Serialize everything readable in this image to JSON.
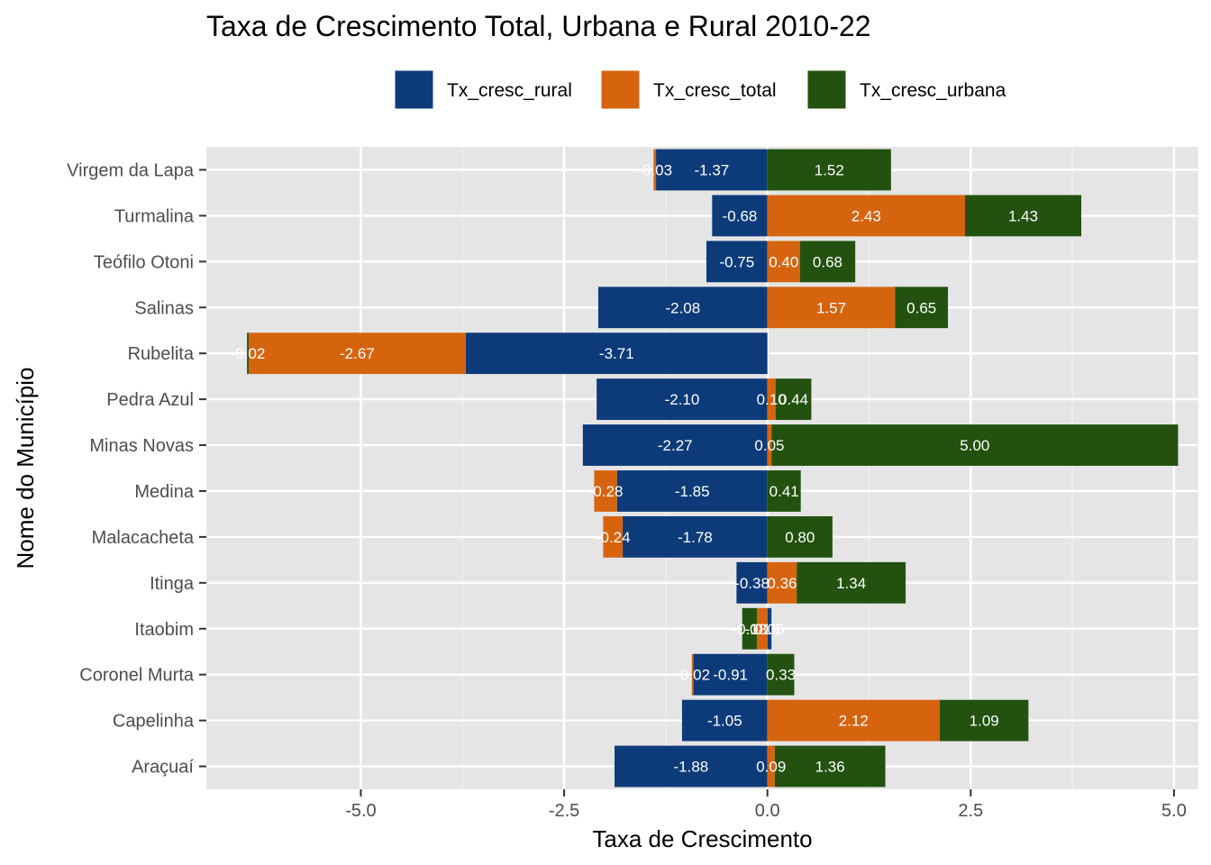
{
  "chart_data": {
    "type": "bar",
    "orientation": "horizontal",
    "stacking": "stacked",
    "title": "Taxa de Crescimento Total, Urbana e Rural 2010-22",
    "xlabel": "Taxa de Crescimento",
    "ylabel": "Nome do Município",
    "xlim": [
      -6.9,
      5.3
    ],
    "x_ticks": [
      -5.0,
      -2.5,
      0.0,
      2.5,
      5.0
    ],
    "x_tick_labels": [
      "-5.0",
      "-2.5",
      "0.0",
      "2.5",
      "5.0"
    ],
    "grid": true,
    "legend_position": "top",
    "categories": [
      "Virgem da Lapa",
      "Turmalina",
      "Teófilo Otoni",
      "Salinas",
      "Rubelita",
      "Pedra Azul",
      "Minas Novas",
      "Medina",
      "Malacacheta",
      "Itinga",
      "Itaobim",
      "Coronel Murta",
      "Capelinha",
      "Araçuaí"
    ],
    "series": [
      {
        "name": "Tx_cresc_rural",
        "color": "#0d3b7a",
        "values": [
          -1.37,
          -0.68,
          -0.75,
          -2.08,
          -3.71,
          -2.1,
          -2.27,
          -1.85,
          -1.78,
          -0.38,
          0.05,
          -0.91,
          -1.05,
          -1.88
        ]
      },
      {
        "name": "Tx_cresc_total",
        "color": "#d6640f",
        "values": [
          -0.03,
          2.43,
          0.4,
          1.57,
          -2.67,
          0.1,
          0.05,
          -0.28,
          -0.24,
          0.36,
          -0.13,
          -0.02,
          2.12,
          0.09
        ]
      },
      {
        "name": "Tx_cresc_urbana",
        "color": "#235210",
        "values": [
          1.52,
          1.43,
          0.68,
          0.65,
          -0.02,
          0.44,
          5.0,
          0.41,
          0.8,
          1.34,
          -0.18,
          0.33,
          1.09,
          1.36
        ]
      }
    ]
  }
}
